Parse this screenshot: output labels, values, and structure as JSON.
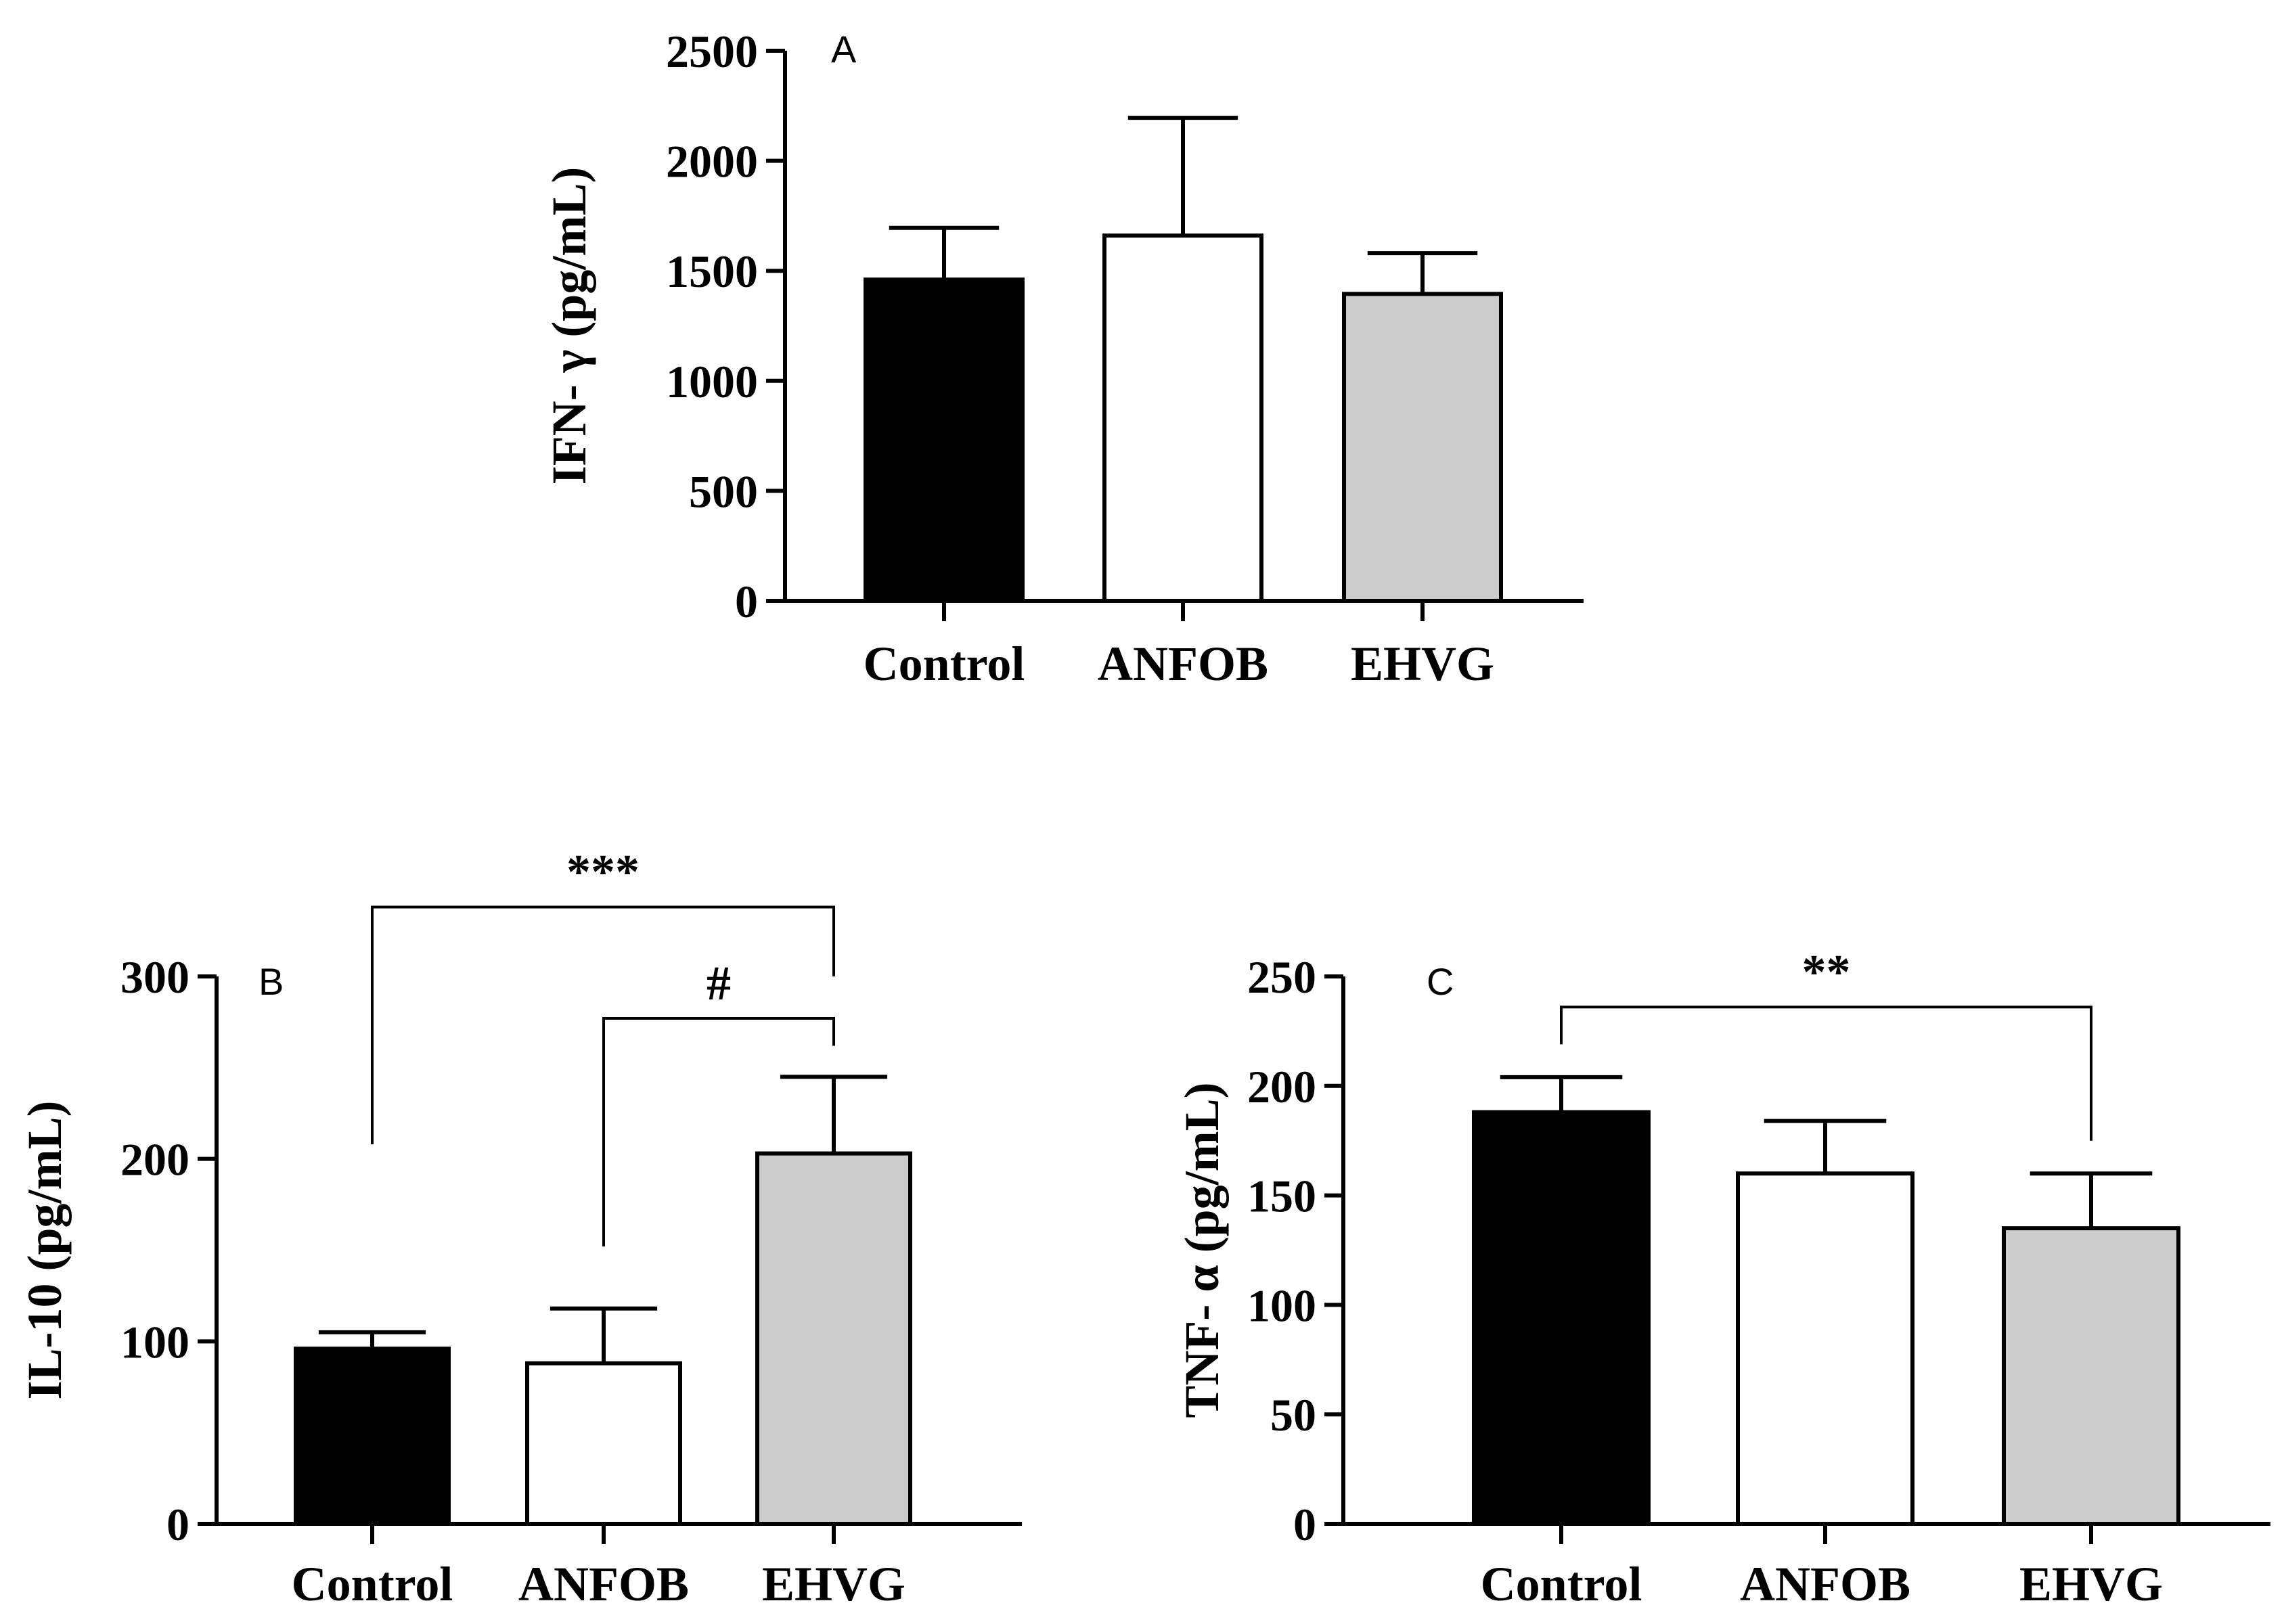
{
  "chart_data": [
    {
      "type": "bar",
      "panel": "A",
      "categories": [
        "Control",
        "ANFOB",
        "EHVG"
      ],
      "values": [
        1460,
        1660,
        1395
      ],
      "errors": [
        235,
        535,
        185
      ],
      "colors": [
        "#000000",
        "#ffffff",
        "#cccccc"
      ],
      "ylabel": "IFN- γ (pg/mL)",
      "ylim": [
        0,
        2500
      ],
      "yticks": [
        0,
        500,
        1000,
        1500,
        2000,
        2500
      ],
      "ytick_labels": [
        "0",
        "500",
        "1000",
        "1500",
        "2000",
        "2500"
      ],
      "significance": []
    },
    {
      "type": "bar",
      "panel": "B",
      "categories": [
        "Control",
        "ANFOB",
        "EHVG"
      ],
      "values": [
        96,
        88,
        203
      ],
      "errors": [
        9,
        30,
        42
      ],
      "colors": [
        "#000000",
        "#ffffff",
        "#cccccc"
      ],
      "ylabel": "IL-10 (pg/mL)",
      "ylim": [
        0,
        300
      ],
      "yticks": [
        0,
        100,
        200,
        300
      ],
      "ytick_labels": [
        "0",
        "100",
        "200",
        "300"
      ],
      "significance": [
        {
          "from": 0,
          "to": 2,
          "label": "***",
          "level": 338,
          "drop_from": 208,
          "drop_to": 300
        },
        {
          "from": 1,
          "to": 2,
          "label": "#",
          "level": 277,
          "drop_from": 152,
          "drop_to": 262
        }
      ]
    },
    {
      "type": "bar",
      "panel": "C",
      "categories": [
        "Control",
        "ANFOB",
        "EHVG"
      ],
      "values": [
        188,
        160,
        135
      ],
      "errors": [
        16,
        24,
        25
      ],
      "colors": [
        "#000000",
        "#ffffff",
        "#cccccc"
      ],
      "ylabel": "TNF- α (pg/mL)",
      "ylim": [
        0,
        250
      ],
      "yticks": [
        0,
        50,
        100,
        150,
        200,
        250
      ],
      "ytick_labels": [
        "0",
        "50",
        "100",
        "150",
        "200",
        "250"
      ],
      "significance": [
        {
          "from": 0,
          "to": 2,
          "label": "**",
          "level": 236,
          "drop_from": 219,
          "drop_to": 175
        }
      ]
    }
  ]
}
